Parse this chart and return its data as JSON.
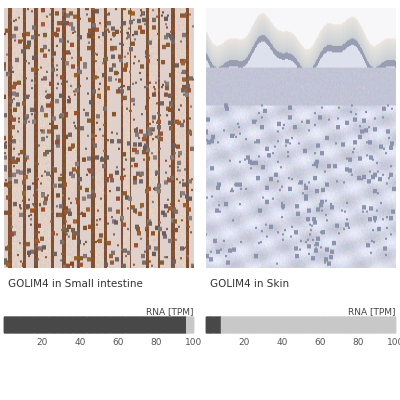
{
  "title_left": "GOLIM4 in Small intestine",
  "title_right": "GOLIM4 in Skin",
  "rna_label": "RNA [TPM]",
  "tick_labels": [
    20,
    40,
    60,
    80,
    100
  ],
  "n_segments": 25,
  "small_intestine_tpm": 95,
  "skin_tpm": 6,
  "tpm_max": 100,
  "dark_color": "#484848",
  "light_color": "#c8c8c8",
  "bg_color": "#ffffff",
  "title_fontsize": 7.5,
  "rna_fontsize": 6.5,
  "tick_fontsize": 6.5,
  "fig_width": 4.0,
  "fig_height": 4.0,
  "fig_dpi": 100
}
